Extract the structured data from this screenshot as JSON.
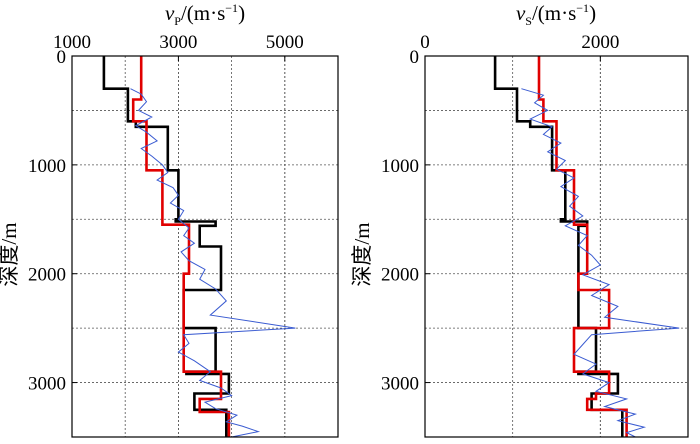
{
  "chart_data": [
    {
      "type": "line",
      "name": "vp-profile",
      "title": "",
      "xlabel": {
        "var": "v",
        "sub": "P",
        "unit": "/(m·s",
        "sup": "−1",
        "close": ")"
      },
      "ylabel": "深度/m",
      "xticks": [
        1000,
        3000,
        5000
      ],
      "xtick_labels": [
        "1000",
        "3000",
        "5000"
      ],
      "xlim": [
        1000,
        6000
      ],
      "yticks": [
        0,
        1000,
        2000,
        3000
      ],
      "ytick_labels": [
        "0",
        "1000",
        "2000",
        "3000"
      ],
      "ylim": [
        3500,
        0
      ],
      "grid": true,
      "series": [
        {
          "name": "blocky model (black)",
          "color": "#000000",
          "x": [
            1600,
            1600,
            2050,
            2050,
            2200,
            2200,
            2800,
            2800,
            3000,
            3000,
            2950,
            2950,
            3700,
            3700,
            3400,
            3400,
            3800,
            3800,
            3100,
            3100,
            3700,
            3700,
            3150,
            3150,
            3950,
            3950,
            3300,
            3300,
            3900,
            3900
          ],
          "y": [
            0,
            300,
            300,
            600,
            600,
            650,
            650,
            1050,
            1050,
            1500,
            1500,
            1520,
            1520,
            1560,
            1560,
            1750,
            1750,
            2150,
            2150,
            2500,
            2500,
            2900,
            2900,
            2920,
            2920,
            3100,
            3100,
            3250,
            3250,
            3500
          ]
        },
        {
          "name": "inverted model (red)",
          "color": "#e00000",
          "x": [
            2300,
            2300,
            2150,
            2150,
            2400,
            2400,
            2700,
            2700,
            3200,
            3200,
            3100,
            3100,
            3100,
            3100,
            3100,
            3100,
            3800,
            3800,
            3800,
            3800,
            3400,
            3400,
            3950,
            3950
          ],
          "y": [
            0,
            400,
            400,
            600,
            600,
            1050,
            1050,
            1550,
            1550,
            2000,
            2000,
            2050,
            2050,
            2500,
            2500,
            2900,
            2900,
            3100,
            3100,
            3150,
            3150,
            3270,
            3270,
            3500
          ]
        },
        {
          "name": "well log (blue)",
          "color": "#3a5bd1",
          "x": [
            2100,
            2300,
            2400,
            2250,
            2500,
            2200,
            2400,
            2600,
            2300,
            2500,
            2700,
            2800,
            2600,
            2900,
            3000,
            2850,
            3100,
            3000,
            3200,
            3100,
            3300,
            3050,
            3200,
            3500,
            3400,
            3700,
            3900,
            3600,
            5200,
            3100,
            3200,
            3000,
            3300,
            3600,
            3400,
            3800,
            4000,
            3500,
            3700,
            4100,
            3900,
            4200,
            4500,
            4000
          ],
          "y": [
            300,
            350,
            420,
            500,
            560,
            640,
            700,
            780,
            850,
            920,
            1000,
            1070,
            1140,
            1210,
            1280,
            1350,
            1420,
            1500,
            1580,
            1650,
            1720,
            1800,
            1880,
            1960,
            2050,
            2140,
            2250,
            2380,
            2500,
            2560,
            2640,
            2720,
            2800,
            2900,
            2980,
            3050,
            3120,
            3180,
            3240,
            3300,
            3360,
            3400,
            3450,
            3500
          ]
        }
      ]
    },
    {
      "type": "line",
      "name": "vs-profile",
      "title": "",
      "xlabel": {
        "var": "v",
        "sub": "S",
        "unit": "/(m·s",
        "sup": "−1",
        "close": ")"
      },
      "ylabel": "深度/m",
      "xticks": [
        0,
        2000
      ],
      "xtick_labels": [
        "0",
        "2000"
      ],
      "xlim": [
        0,
        3000
      ],
      "yticks": [
        0,
        1000,
        2000,
        3000
      ],
      "ytick_labels": [
        "0",
        "1000",
        "2000",
        "3000"
      ],
      "ylim": [
        3500,
        0
      ],
      "grid": true,
      "series": [
        {
          "name": "blocky model (black)",
          "color": "#000000",
          "x": [
            800,
            800,
            1050,
            1050,
            1200,
            1200,
            1450,
            1450,
            1600,
            1600,
            1550,
            1550,
            1850,
            1850,
            1750,
            1750,
            1750,
            1750,
            1750,
            1750,
            1950,
            1950,
            1750,
            1750,
            2200,
            2200,
            1900,
            1900,
            2250,
            2250
          ],
          "y": [
            0,
            300,
            300,
            600,
            600,
            650,
            650,
            1050,
            1050,
            1500,
            1500,
            1520,
            1520,
            1560,
            1560,
            1750,
            1750,
            2150,
            2150,
            2500,
            2500,
            2900,
            2900,
            2920,
            2920,
            3100,
            3100,
            3250,
            3250,
            3500
          ]
        },
        {
          "name": "inverted model (red)",
          "color": "#e00000",
          "x": [
            1300,
            1300,
            1350,
            1350,
            1500,
            1500,
            1700,
            1700,
            1850,
            1850,
            1750,
            1750,
            2100,
            2100,
            1700,
            1700,
            2100,
            2100,
            1950,
            1950,
            1850,
            1850,
            2300,
            2300
          ],
          "y": [
            0,
            400,
            400,
            600,
            600,
            1050,
            1050,
            1550,
            1550,
            2000,
            2000,
            2150,
            2150,
            2500,
            2500,
            2900,
            2900,
            3100,
            3100,
            3150,
            3150,
            3250,
            3250,
            3500
          ]
        },
        {
          "name": "well log (blue)",
          "color": "#3a5bd1",
          "x": [
            1100,
            1350,
            1250,
            1400,
            1200,
            1450,
            1350,
            1550,
            1400,
            1600,
            1500,
            1700,
            1550,
            1750,
            1650,
            1800,
            1600,
            1850,
            1750,
            1900,
            2000,
            1800,
            2100,
            1900,
            2200,
            2050,
            2900,
            1900,
            1800,
            1700,
            1950,
            1800,
            2100,
            1950,
            2300,
            2050,
            2400,
            2200,
            2500,
            2300,
            2400
          ],
          "y": [
            300,
            360,
            430,
            500,
            580,
            650,
            720,
            800,
            880,
            960,
            1040,
            1120,
            1200,
            1290,
            1380,
            1470,
            1560,
            1650,
            1740,
            1830,
            1920,
            2010,
            2100,
            2200,
            2300,
            2400,
            2500,
            2560,
            2650,
            2740,
            2830,
            2920,
            3000,
            3080,
            3150,
            3220,
            3290,
            3350,
            3410,
            3460,
            3500
          ]
        }
      ]
    }
  ]
}
